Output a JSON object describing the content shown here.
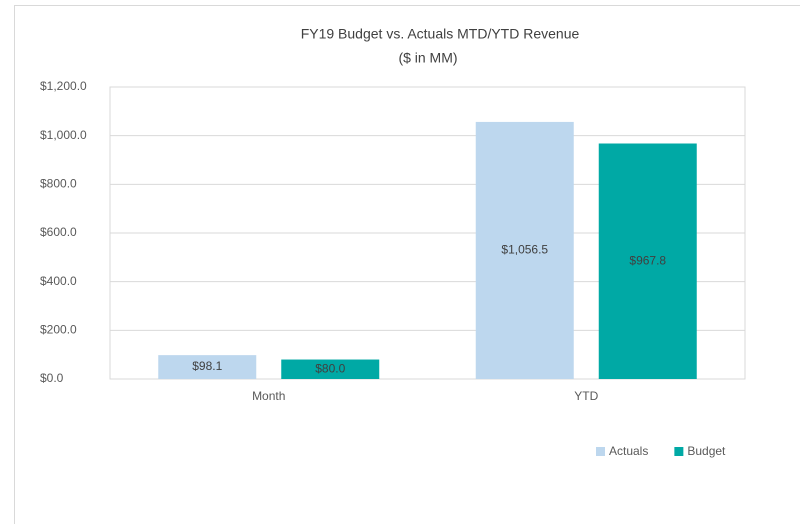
{
  "chart_data": {
    "type": "bar",
    "title": "FY19 Budget vs. Actuals MTD/YTD Revenue",
    "subtitle": "($ in MM)",
    "categories": [
      "Month",
      "YTD"
    ],
    "series": [
      {
        "name": "Actuals",
        "color": "#bdd7ee",
        "values": [
          98.1,
          1056.5
        ],
        "value_labels": [
          "$98.1",
          "$1,056.5"
        ]
      },
      {
        "name": "Budget",
        "color": "#00a9a5",
        "values": [
          80.0,
          967.8
        ],
        "value_labels": [
          "$80.0",
          "$967.8"
        ]
      }
    ],
    "ylim": [
      0,
      1200
    ],
    "yticks": [
      {
        "value": 0,
        "label": "$0.0"
      },
      {
        "value": 200,
        "label": "$200.0"
      },
      {
        "value": 400,
        "label": "$400.0"
      },
      {
        "value": 600,
        "label": "$600.0"
      },
      {
        "value": 800,
        "label": "$800.0"
      },
      {
        "value": 1000,
        "label": "$1,000.0"
      },
      {
        "value": 1200,
        "label": "$1,200.0"
      }
    ],
    "grid": true,
    "legend": "bottom-right"
  }
}
